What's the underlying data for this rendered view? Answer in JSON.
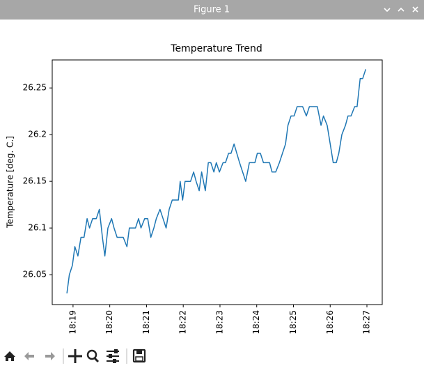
{
  "window": {
    "title": "Figure 1"
  },
  "chart_data": {
    "type": "line",
    "title": "Temperature Trend",
    "y_label": "Temperature [deg. C.]",
    "x": [
      "18:18:50",
      "18:18:54",
      "18:18:59",
      "18:19:03",
      "18:19:08",
      "18:19:13",
      "18:19:18",
      "18:19:23",
      "18:19:27",
      "18:19:32",
      "18:19:38",
      "18:19:43",
      "18:19:48",
      "18:19:52",
      "18:19:57",
      "18:20:03",
      "18:20:07",
      "18:20:12",
      "18:20:17",
      "18:20:22",
      "18:20:28",
      "18:20:32",
      "18:20:38",
      "18:20:42",
      "18:20:47",
      "18:20:51",
      "18:20:57",
      "18:21:02",
      "18:21:07",
      "18:21:12",
      "18:21:16",
      "18:21:22",
      "18:21:27",
      "18:21:32",
      "18:21:37",
      "18:21:42",
      "18:21:47",
      "18:21:52",
      "18:21:55",
      "18:21:59",
      "18:22:03",
      "18:22:08",
      "18:22:12",
      "18:22:17",
      "18:22:21",
      "18:22:26",
      "18:22:30",
      "18:22:36",
      "18:22:41",
      "18:22:45",
      "18:22:50",
      "18:22:54",
      "18:22:59",
      "18:23:05",
      "18:23:09",
      "18:23:14",
      "18:23:18",
      "18:23:23",
      "18:23:32",
      "18:23:42",
      "18:23:48",
      "18:23:57",
      "18:24:01",
      "18:24:06",
      "18:24:11",
      "18:24:21",
      "18:24:25",
      "18:24:31",
      "18:24:37",
      "18:24:47",
      "18:24:51",
      "18:24:56",
      "18:25:01",
      "18:25:06",
      "18:25:15",
      "18:25:21",
      "18:25:26",
      "18:25:39",
      "18:25:45",
      "18:25:49",
      "18:25:55",
      "18:26:00",
      "18:26:05",
      "18:26:10",
      "18:26:14",
      "18:26:19",
      "18:26:25",
      "18:26:29",
      "18:26:34",
      "18:26:40",
      "18:26:44",
      "18:26:49",
      "18:26:53",
      "18:26:58"
    ],
    "values": [
      26.03,
      26.05,
      26.06,
      26.08,
      26.07,
      26.09,
      26.09,
      26.11,
      26.1,
      26.11,
      26.11,
      26.12,
      26.09,
      26.07,
      26.1,
      26.11,
      26.1,
      26.09,
      26.09,
      26.09,
      26.08,
      26.1,
      26.1,
      26.1,
      26.11,
      26.1,
      26.11,
      26.11,
      26.09,
      26.1,
      26.11,
      26.12,
      26.11,
      26.1,
      26.12,
      26.13,
      26.13,
      26.13,
      26.15,
      26.13,
      26.15,
      26.15,
      26.15,
      26.16,
      26.15,
      26.14,
      26.16,
      26.14,
      26.17,
      26.17,
      26.16,
      26.17,
      26.16,
      26.17,
      26.17,
      26.18,
      26.18,
      26.19,
      26.17,
      26.15,
      26.17,
      26.17,
      26.18,
      26.18,
      26.17,
      26.17,
      26.16,
      26.16,
      26.17,
      26.19,
      26.21,
      26.22,
      26.22,
      26.23,
      26.23,
      26.22,
      26.23,
      26.23,
      26.21,
      26.22,
      26.21,
      26.19,
      26.17,
      26.17,
      26.18,
      26.2,
      26.21,
      26.22,
      26.22,
      26.23,
      26.23,
      26.26,
      26.26,
      26.27
    ],
    "color": "#1f77b4",
    "xlim": [
      "18:18:26",
      "18:27:25"
    ],
    "xticks": [
      "18:19",
      "18:20",
      "18:21",
      "18:22",
      "18:23",
      "18:24",
      "18:25",
      "18:26",
      "18:27"
    ],
    "ylim": [
      26.018,
      26.28
    ],
    "yticks": [
      26.05,
      26.1,
      26.15,
      26.2,
      26.25
    ]
  }
}
